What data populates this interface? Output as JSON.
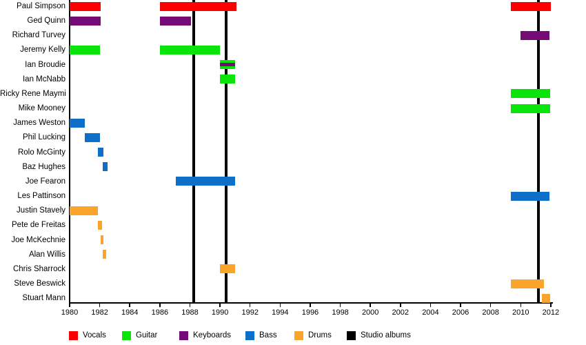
{
  "chart_data": {
    "type": "timeline",
    "description": "Band members timeline with roles and studio album release markers",
    "x_axis": {
      "min": 1980,
      "max": 2012,
      "tick_step": 2,
      "ticks": [
        1980,
        1982,
        1984,
        1986,
        1988,
        1990,
        1992,
        1994,
        1996,
        1998,
        2000,
        2002,
        2004,
        2006,
        2008,
        2010,
        2012
      ]
    },
    "colors": {
      "vocals": "#fb0000",
      "guitar": "#0be40b",
      "keyboards": "#740b76",
      "bass": "#0e6fc8",
      "drums": "#fba42c",
      "albums": "#000000"
    },
    "legend": [
      {
        "label": "Vocals",
        "color": "vocals"
      },
      {
        "label": "Guitar",
        "color": "guitar"
      },
      {
        "label": "Keyboards",
        "color": "keyboards"
      },
      {
        "label": "Bass",
        "color": "bass"
      },
      {
        "label": "Drums",
        "color": "drums"
      },
      {
        "label": "Studio albums",
        "color": "albums"
      }
    ],
    "members": [
      {
        "name": "Paul Simpson",
        "roles": [
          "vocals"
        ],
        "periods": [
          [
            1980.0,
            1982.05
          ],
          [
            1986.0,
            1991.1
          ],
          [
            2009.35,
            2012.0
          ]
        ]
      },
      {
        "name": "Ged Quinn",
        "roles": [
          "keyboards"
        ],
        "periods": [
          [
            1980.0,
            1982.05
          ],
          [
            1986.0,
            1988.05
          ]
        ]
      },
      {
        "name": "Richard Turvey",
        "roles": [
          "keyboards"
        ],
        "periods": [
          [
            2010.0,
            2011.9
          ]
        ]
      },
      {
        "name": "Jeremy Kelly",
        "roles": [
          "guitar"
        ],
        "periods": [
          [
            1980.0,
            1982.02
          ],
          [
            1986.0,
            1990.0
          ]
        ]
      },
      {
        "name": "Ian Broudie",
        "roles": [
          "guitar",
          "keyboards"
        ],
        "periods": [
          [
            1990.0,
            1991.0
          ]
        ]
      },
      {
        "name": "Ian McNabb",
        "roles": [
          "guitar"
        ],
        "periods": [
          [
            1990.0,
            1991.0
          ]
        ]
      },
      {
        "name": "Ricky Rene Maymi",
        "roles": [
          "guitar"
        ],
        "periods": [
          [
            2009.35,
            2011.95
          ]
        ]
      },
      {
        "name": "Mike Mooney",
        "roles": [
          "guitar"
        ],
        "periods": [
          [
            2009.35,
            2011.95
          ]
        ]
      },
      {
        "name": "James Weston",
        "roles": [
          "bass"
        ],
        "periods": [
          [
            1980.0,
            1981.0
          ]
        ]
      },
      {
        "name": "Phil Lucking",
        "roles": [
          "bass"
        ],
        "periods": [
          [
            1981.0,
            1982.0
          ]
        ]
      },
      {
        "name": "Rolo McGinty",
        "roles": [
          "bass"
        ],
        "periods": [
          [
            1981.9,
            1982.25
          ]
        ]
      },
      {
        "name": "Baz Hughes",
        "roles": [
          "bass"
        ],
        "periods": [
          [
            1982.2,
            1982.5
          ]
        ]
      },
      {
        "name": "Joe Fearon",
        "roles": [
          "bass"
        ],
        "periods": [
          [
            1987.05,
            1991.0
          ]
        ]
      },
      {
        "name": "Les Pattinson",
        "roles": [
          "bass"
        ],
        "periods": [
          [
            2009.35,
            2011.9
          ]
        ]
      },
      {
        "name": "Justin Stavely",
        "roles": [
          "drums"
        ],
        "periods": [
          [
            1980.0,
            1981.9
          ]
        ]
      },
      {
        "name": "Pete de Freitas",
        "roles": [
          "drums"
        ],
        "periods": [
          [
            1981.9,
            1982.15
          ]
        ]
      },
      {
        "name": "Joe McKechnie",
        "roles": [
          "drums"
        ],
        "periods": [
          [
            1982.05,
            1982.25
          ]
        ]
      },
      {
        "name": "Alan Willis",
        "roles": [
          "drums"
        ],
        "periods": [
          [
            1982.2,
            1982.45
          ]
        ]
      },
      {
        "name": "Chris Sharrock",
        "roles": [
          "drums"
        ],
        "periods": [
          [
            1990.0,
            1991.0
          ]
        ]
      },
      {
        "name": "Steve Beswick",
        "roles": [
          "drums"
        ],
        "periods": [
          [
            2009.35,
            2011.55
          ]
        ]
      },
      {
        "name": "Stuart Mann",
        "roles": [
          "drums"
        ],
        "periods": [
          [
            2011.4,
            2011.95
          ]
        ]
      }
    ],
    "albums": {
      "label": "Studio albums",
      "years": [
        1988.25,
        1990.4,
        2011.2
      ]
    }
  }
}
